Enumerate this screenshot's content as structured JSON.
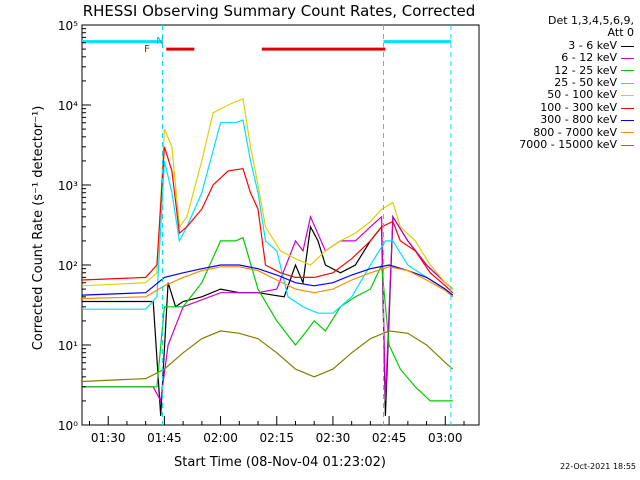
{
  "chart_data": {
    "type": "line",
    "title": "RHESSI Observing Summary Count Rates, Corrected",
    "ylabel": "Corrected Count Rate (s⁻¹ detector⁻¹)",
    "xlabel": "Start Time (08-Nov-04 01:23:02)",
    "y_scale": "log",
    "ylim": [
      1,
      100000
    ],
    "xlim_minutes": [
      -7,
      99
    ],
    "y_ticks": [
      {
        "value": 1,
        "label": "10⁰"
      },
      {
        "value": 10,
        "label": "10¹"
      },
      {
        "value": 100,
        "label": "10²"
      },
      {
        "value": 1000,
        "label": "10³"
      },
      {
        "value": 10000,
        "label": "10⁴"
      },
      {
        "value": 100000,
        "label": "10⁵"
      }
    ],
    "x_ticks": [
      {
        "minute": 0,
        "label": "01:30"
      },
      {
        "minute": 15,
        "label": "01:45"
      },
      {
        "minute": 30,
        "label": "02:00"
      },
      {
        "minute": 45,
        "label": "02:15"
      },
      {
        "minute": 60,
        "label": "02:30"
      },
      {
        "minute": 75,
        "label": "02:45"
      },
      {
        "minute": 90,
        "label": "03:00"
      }
    ],
    "grid": false,
    "legend_position": "right",
    "legend_header": [
      "Det 1,3,4,5,6,9,",
      "Att 0"
    ],
    "series": [
      {
        "name": "3 - 6 keV",
        "color": "#000000",
        "points": [
          [
            -7,
            35
          ],
          [
            12,
            35
          ],
          [
            14,
            1.3
          ],
          [
            16,
            60
          ],
          [
            18,
            30
          ],
          [
            20,
            35
          ],
          [
            25,
            40
          ],
          [
            30,
            50
          ],
          [
            35,
            45
          ],
          [
            40,
            45
          ],
          [
            47,
            40
          ],
          [
            50,
            100
          ],
          [
            52,
            60
          ],
          [
            54,
            300
          ],
          [
            56,
            200
          ],
          [
            58,
            100
          ],
          [
            62,
            80
          ],
          [
            66,
            100
          ],
          [
            70,
            200
          ],
          [
            73,
            300
          ],
          [
            74,
            1.3
          ],
          [
            76,
            400
          ],
          [
            80,
            200
          ],
          [
            85,
            100
          ],
          [
            90,
            60
          ],
          [
            92,
            50
          ]
        ]
      },
      {
        "name": "6 - 12 keV",
        "color": "#cc00cc",
        "points": [
          [
            -7,
            3
          ],
          [
            12,
            3
          ],
          [
            14,
            2
          ],
          [
            16,
            10
          ],
          [
            20,
            30
          ],
          [
            30,
            45
          ],
          [
            40,
            45
          ],
          [
            45,
            50
          ],
          [
            50,
            200
          ],
          [
            52,
            150
          ],
          [
            54,
            400
          ],
          [
            58,
            150
          ],
          [
            62,
            200
          ],
          [
            66,
            200
          ],
          [
            70,
            300
          ],
          [
            73,
            400
          ],
          [
            74,
            2
          ],
          [
            76,
            400
          ],
          [
            80,
            200
          ],
          [
            85,
            100
          ],
          [
            90,
            60
          ],
          [
            92,
            50
          ]
        ]
      },
      {
        "name": "12 - 25 keV",
        "color": "#00cc00",
        "points": [
          [
            -7,
            3
          ],
          [
            13,
            3
          ],
          [
            15,
            30
          ],
          [
            20,
            30
          ],
          [
            25,
            60
          ],
          [
            30,
            200
          ],
          [
            34,
            200
          ],
          [
            36,
            220
          ],
          [
            40,
            50
          ],
          [
            45,
            20
          ],
          [
            50,
            10
          ],
          [
            53,
            15
          ],
          [
            55,
            20
          ],
          [
            58,
            15
          ],
          [
            62,
            30
          ],
          [
            66,
            40
          ],
          [
            70,
            50
          ],
          [
            73,
            100
          ],
          [
            75,
            10
          ],
          [
            78,
            5
          ],
          [
            82,
            3
          ],
          [
            86,
            2
          ],
          [
            92,
            2
          ]
        ]
      },
      {
        "name": "25 - 50 keV",
        "color": "#00e0ff",
        "points": [
          [
            -7,
            28
          ],
          [
            10,
            28
          ],
          [
            13,
            40
          ],
          [
            15,
            2000
          ],
          [
            17,
            800
          ],
          [
            19,
            200
          ],
          [
            21,
            300
          ],
          [
            25,
            800
          ],
          [
            30,
            6000
          ],
          [
            34,
            6000
          ],
          [
            36,
            6500
          ],
          [
            38,
            2000
          ],
          [
            40,
            800
          ],
          [
            42,
            200
          ],
          [
            45,
            150
          ],
          [
            48,
            40
          ],
          [
            52,
            30
          ],
          [
            56,
            25
          ],
          [
            60,
            25
          ],
          [
            65,
            40
          ],
          [
            70,
            100
          ],
          [
            74,
            200
          ],
          [
            76,
            200
          ],
          [
            80,
            100
          ],
          [
            85,
            70
          ],
          [
            90,
            50
          ],
          [
            92,
            40
          ]
        ]
      },
      {
        "name": "50 - 100 keV",
        "color": "#e0d000",
        "points": [
          [
            -7,
            55
          ],
          [
            10,
            60
          ],
          [
            13,
            80
          ],
          [
            15,
            5000
          ],
          [
            17,
            3000
          ],
          [
            19,
            300
          ],
          [
            21,
            400
          ],
          [
            25,
            2000
          ],
          [
            28,
            8000
          ],
          [
            32,
            10000
          ],
          [
            36,
            12000
          ],
          [
            38,
            3000
          ],
          [
            40,
            1000
          ],
          [
            42,
            300
          ],
          [
            46,
            150
          ],
          [
            50,
            120
          ],
          [
            54,
            100
          ],
          [
            58,
            150
          ],
          [
            62,
            200
          ],
          [
            66,
            250
          ],
          [
            70,
            350
          ],
          [
            73,
            500
          ],
          [
            76,
            600
          ],
          [
            78,
            300
          ],
          [
            82,
            200
          ],
          [
            86,
            100
          ],
          [
            90,
            60
          ],
          [
            92,
            50
          ]
        ]
      },
      {
        "name": "100 - 300 keV",
        "color": "#ff0000",
        "points": [
          [
            -7,
            65
          ],
          [
            10,
            70
          ],
          [
            13,
            100
          ],
          [
            15,
            3000
          ],
          [
            17,
            1500
          ],
          [
            19,
            250
          ],
          [
            21,
            300
          ],
          [
            25,
            500
          ],
          [
            28,
            1000
          ],
          [
            32,
            1500
          ],
          [
            36,
            1600
          ],
          [
            38,
            800
          ],
          [
            40,
            500
          ],
          [
            42,
            100
          ],
          [
            46,
            80
          ],
          [
            50,
            70
          ],
          [
            55,
            70
          ],
          [
            60,
            80
          ],
          [
            65,
            120
          ],
          [
            70,
            200
          ],
          [
            73,
            300
          ],
          [
            76,
            350
          ],
          [
            78,
            200
          ],
          [
            82,
            150
          ],
          [
            86,
            80
          ],
          [
            90,
            55
          ],
          [
            92,
            45
          ]
        ]
      },
      {
        "name": "300 - 800 keV",
        "color": "#0000ff",
        "points": [
          [
            -7,
            42
          ],
          [
            10,
            45
          ],
          [
            15,
            70
          ],
          [
            20,
            80
          ],
          [
            25,
            90
          ],
          [
            30,
            100
          ],
          [
            35,
            100
          ],
          [
            40,
            90
          ],
          [
            45,
            75
          ],
          [
            50,
            60
          ],
          [
            55,
            55
          ],
          [
            60,
            60
          ],
          [
            65,
            75
          ],
          [
            70,
            90
          ],
          [
            75,
            100
          ],
          [
            80,
            85
          ],
          [
            85,
            70
          ],
          [
            90,
            50
          ],
          [
            92,
            42
          ]
        ]
      },
      {
        "name": "800 - 7000 keV",
        "color": "#ff8800",
        "points": [
          [
            -7,
            38
          ],
          [
            10,
            40
          ],
          [
            15,
            55
          ],
          [
            20,
            70
          ],
          [
            25,
            85
          ],
          [
            30,
            95
          ],
          [
            35,
            95
          ],
          [
            40,
            85
          ],
          [
            45,
            65
          ],
          [
            50,
            50
          ],
          [
            55,
            45
          ],
          [
            60,
            50
          ],
          [
            65,
            65
          ],
          [
            70,
            80
          ],
          [
            75,
            95
          ],
          [
            80,
            85
          ],
          [
            85,
            65
          ],
          [
            90,
            48
          ],
          [
            92,
            40
          ]
        ]
      },
      {
        "name": "7000 - 15000 keV",
        "color": "#808000",
        "points": [
          [
            -7,
            3.5
          ],
          [
            10,
            3.8
          ],
          [
            15,
            5
          ],
          [
            20,
            8
          ],
          [
            25,
            12
          ],
          [
            30,
            15
          ],
          [
            35,
            14
          ],
          [
            40,
            12
          ],
          [
            45,
            8
          ],
          [
            50,
            5
          ],
          [
            55,
            4
          ],
          [
            60,
            5
          ],
          [
            65,
            8
          ],
          [
            70,
            12
          ],
          [
            75,
            15
          ],
          [
            80,
            14
          ],
          [
            85,
            10
          ],
          [
            90,
            6
          ],
          [
            92,
            5
          ]
        ]
      }
    ],
    "annotations": {
      "flag_N": "N",
      "flag_F": "F",
      "vertical_lines_minutes": [
        14.5,
        73.5,
        91.5
      ]
    },
    "flag_bars": [
      {
        "label": "N",
        "color": "#00e0ff",
        "start_minute": -7,
        "end_minute": 14.5,
        "level": 62000
      },
      {
        "label": "N",
        "color": "#00e0ff",
        "start_minute": 73.5,
        "end_minute": 91.5,
        "level": 62000
      },
      {
        "label": "F",
        "color": "#e00000",
        "start_minute": 15.5,
        "end_minute": 23,
        "level": 50000
      },
      {
        "label": "F",
        "color": "#e00000",
        "start_minute": 41,
        "end_minute": 74,
        "level": 50000
      }
    ]
  },
  "footer": {
    "timestamp": "22-Oct-2021 18:55"
  }
}
